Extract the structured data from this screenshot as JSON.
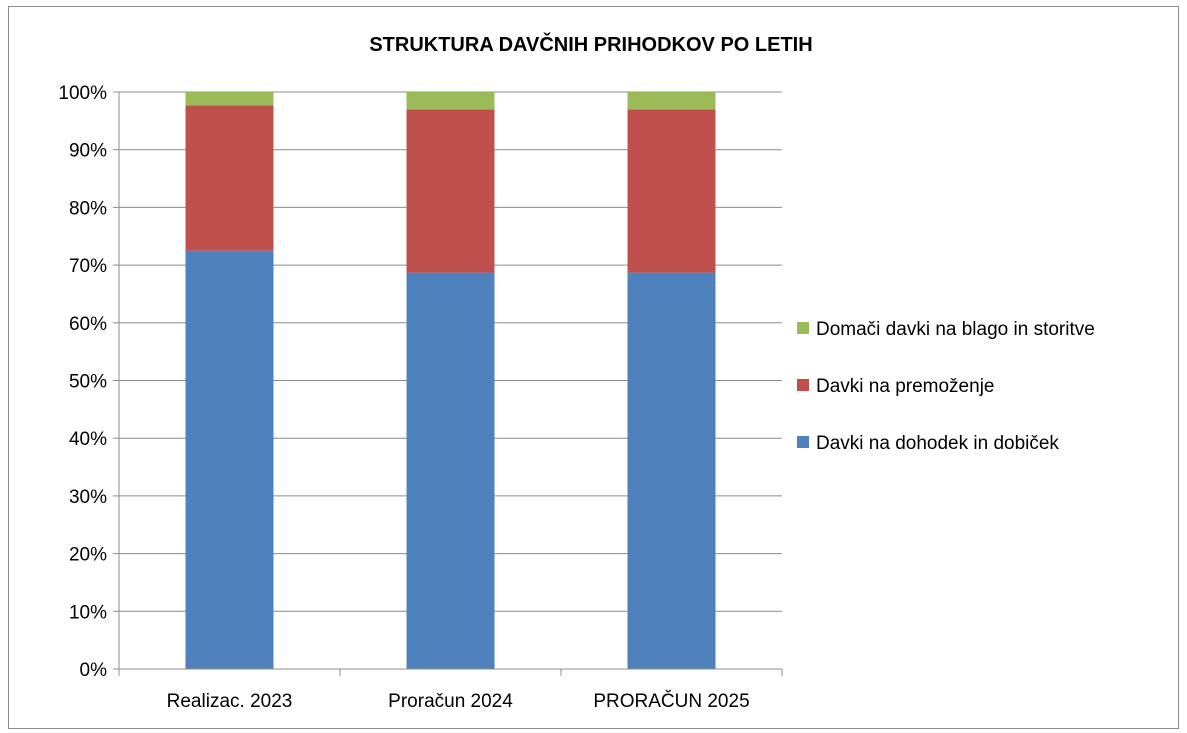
{
  "chart_data": {
    "type": "bar",
    "stacked": true,
    "percent": true,
    "title": "STRUKTURA DAVČNIH PRIHODKOV PO LETIH",
    "xlabel": "",
    "ylabel": "",
    "categories": [
      "Realizac. 2023",
      "Proračun 2024",
      "PRORAČUN 2025"
    ],
    "y_ticks": [
      "0%",
      "10%",
      "20%",
      "30%",
      "40%",
      "50%",
      "60%",
      "70%",
      "80%",
      "90%",
      "100%"
    ],
    "ylim": [
      0,
      100
    ],
    "grid": true,
    "legend_position": "right",
    "series": [
      {
        "name": "Davki na dohodek in dobiček",
        "color": "#4F81BD",
        "values": [
          72.5,
          68.7,
          68.7
        ]
      },
      {
        "name": "Davki na premoženje",
        "color": "#C0504D",
        "values": [
          25.2,
          28.3,
          28.3
        ]
      },
      {
        "name": "Domači davki na blago in storitve",
        "color": "#9BBB59",
        "values": [
          2.3,
          3.0,
          3.0
        ]
      }
    ]
  }
}
